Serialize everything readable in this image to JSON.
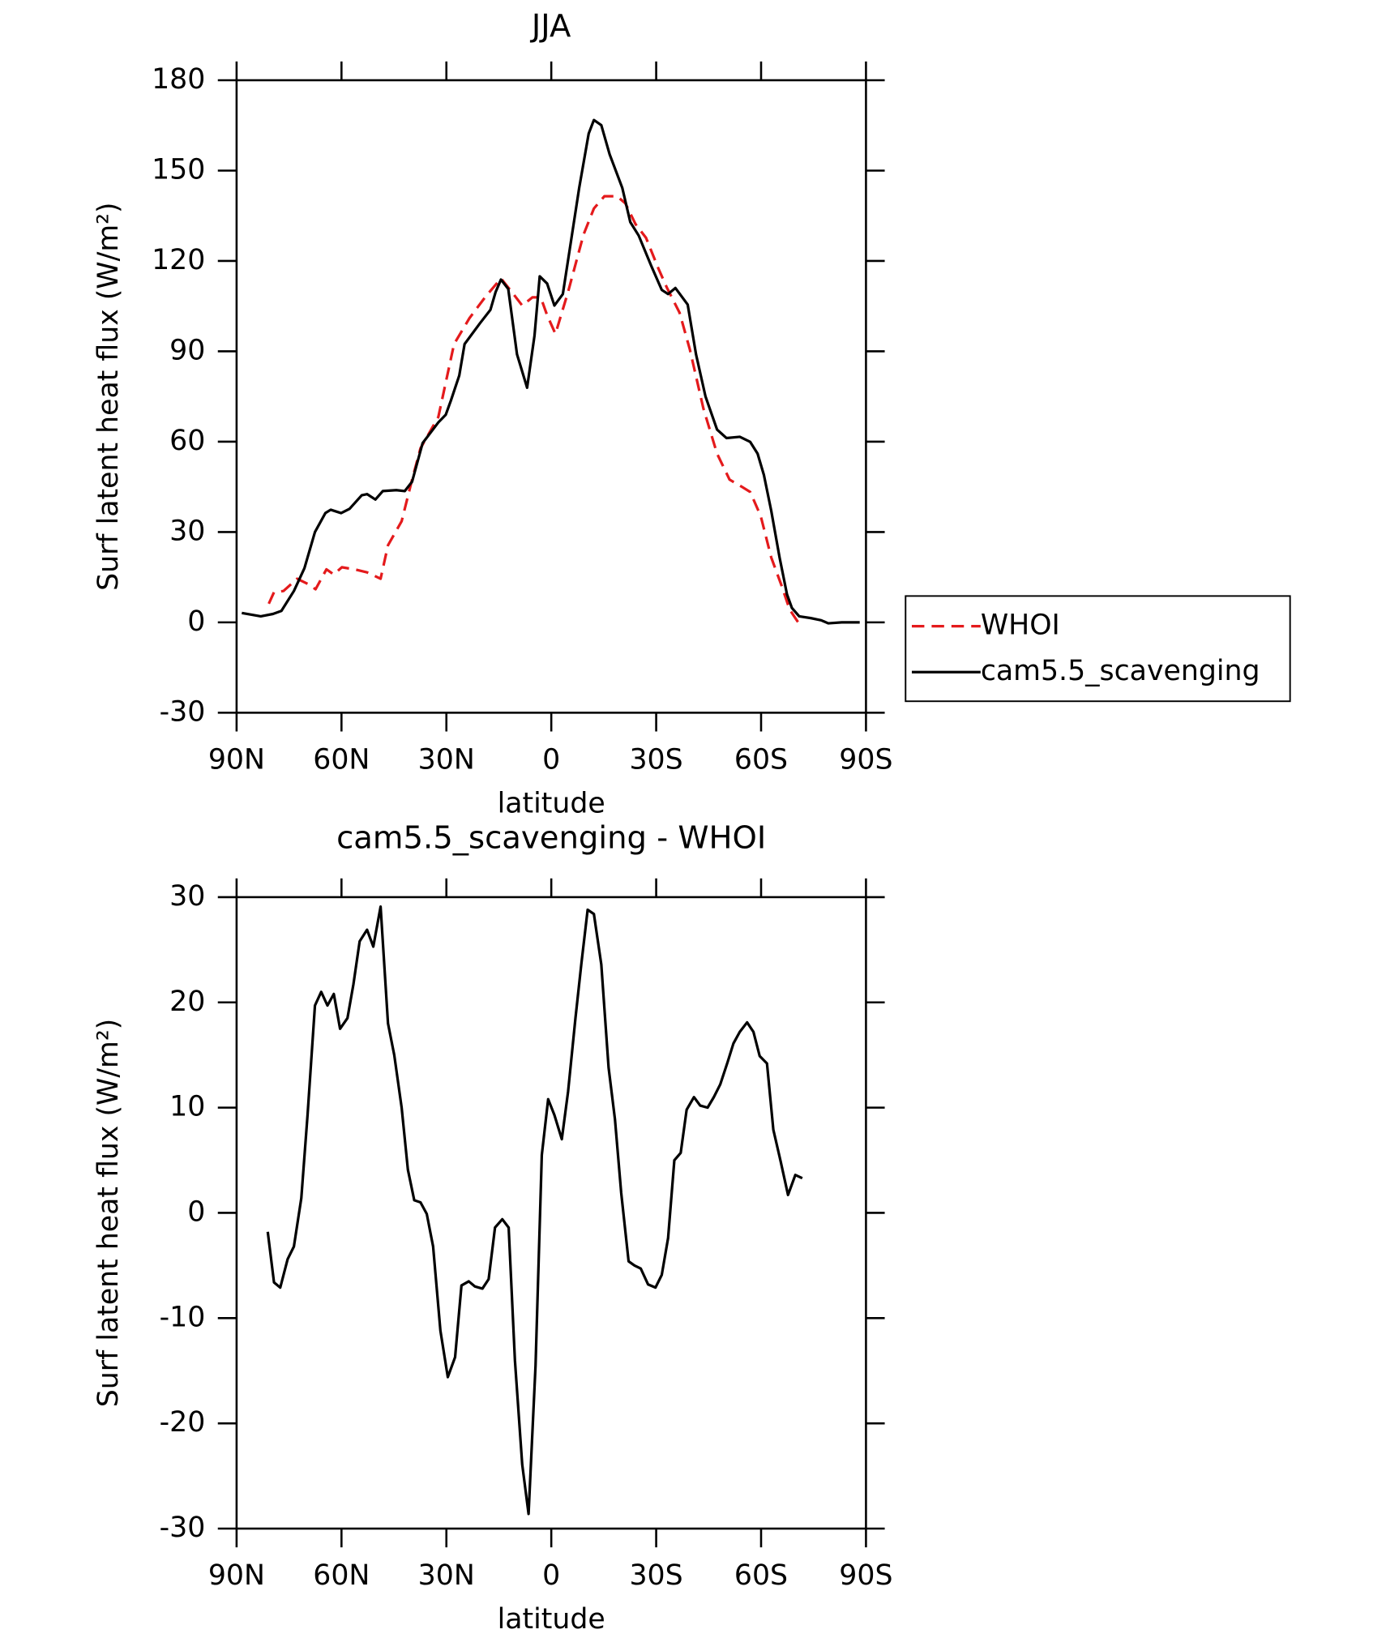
{
  "chart_data": [
    {
      "type": "line",
      "title": "JJA",
      "xlabel": "latitude",
      "ylabel": "Surf latent heat flux (W/m²)",
      "xlim": [
        90,
        -90
      ],
      "xticks": [
        {
          "value": 90,
          "label": "90N"
        },
        {
          "value": 60,
          "label": "60N"
        },
        {
          "value": 30,
          "label": "30N"
        },
        0,
        {
          "value": -30,
          "label": "30S"
        },
        {
          "value": -60,
          "label": "60S"
        },
        {
          "value": -90,
          "label": "90S"
        }
      ],
      "ylim": [
        -30,
        180
      ],
      "yticks": [
        -30,
        0,
        30,
        60,
        90,
        120,
        150,
        180
      ],
      "legend": "outside right",
      "series": [
        {
          "name": "WHOI",
          "color": "#e41a1c",
          "dash": true,
          "x": [
            80.8,
            79.3,
            76.6,
            72.7,
            69.7,
            67.4,
            64.3,
            62.2,
            59.9,
            56.3,
            52.7,
            48.8,
            46.7,
            42.8,
            39.8,
            37.4,
            32.3,
            27.8,
            23.4,
            18.9,
            14.4,
            11.3,
            8.3,
            5.4,
            3.0,
            1.2,
            -1.2,
            -4.8,
            -9.2,
            -12.2,
            -15.2,
            -18.8,
            -21.2,
            -24.1,
            -27.1,
            -30.7,
            -33.1,
            -36.7,
            -39.6,
            -43.5,
            -47.4,
            -51.0,
            -54.5,
            -56.9,
            -59.9,
            -62.9,
            -65.9,
            -68.2,
            -71.2
          ],
          "values": [
            6.2,
            10,
            10.4,
            14.5,
            12.8,
            11,
            17.6,
            15.9,
            18.3,
            17.6,
            16.6,
            14.5,
            25.6,
            33.6,
            47.4,
            57.8,
            68.2,
            92.4,
            101,
            108,
            114.2,
            109.7,
            105.2,
            107.9,
            107.9,
            102,
            95.8,
            109.7,
            128.7,
            137.4,
            141.5,
            141.5,
            139.1,
            132.2,
            127.7,
            117.3,
            111,
            102.8,
            90.7,
            71,
            56,
            47.4,
            45,
            43.3,
            35.3,
            21.5,
            12.1,
            4.2,
            -1
          ]
        },
        {
          "name": "cam5.5_scavenging",
          "color": "#000000",
          "dash": false,
          "x": [
            88.5,
            83.1,
            79.6,
            77.2,
            73.6,
            70.6,
            67.6,
            64.6,
            63.1,
            60.1,
            57.7,
            54.2,
            52.7,
            50.3,
            48.2,
            44.3,
            41.9,
            39.8,
            36.8,
            32.3,
            30.2,
            28.7,
            26.3,
            24.8,
            20.4,
            17.4,
            15.9,
            14.4,
            12.3,
            9.8,
            6.9,
            4.8,
            3.3,
            1.2,
            -0.9,
            -3.3,
            -5.7,
            -8.0,
            -10.7,
            -12.2,
            -14.3,
            -16.7,
            -20.3,
            -22.6,
            -25.0,
            -28.6,
            -31.6,
            -33.4,
            -35.5,
            -39.0,
            -41.4,
            -44.1,
            -47.4,
            -50.1,
            -53.9,
            -56.9,
            -59.0,
            -60.8,
            -62.9,
            -65.3,
            -67.4,
            -68.8,
            -70.9,
            -74.2,
            -77.2,
            -79.2,
            -83.1,
            -88.2
          ],
          "values": [
            3.1,
            2,
            2.8,
            3.8,
            10.4,
            18,
            30,
            36.3,
            37.4,
            36.3,
            37.7,
            42.2,
            42.6,
            40.8,
            43.6,
            43.9,
            43.6,
            46.7,
            59.5,
            66.4,
            68.9,
            73.7,
            82,
            92.4,
            99.3,
            103.8,
            109.7,
            113.8,
            110.7,
            89,
            77.9,
            95.2,
            114.9,
            112.5,
            105.2,
            109,
            127,
            144.3,
            162.3,
            166.8,
            165.1,
            155.4,
            144.3,
            132.9,
            128.4,
            118.3,
            110.4,
            109,
            111,
            105.5,
            89,
            75,
            64,
            61.2,
            61.6,
            59.9,
            56,
            49,
            37,
            21.5,
            9.3,
            4.8,
            2,
            1.4,
            0.7,
            -0.3,
            0,
            0
          ]
        }
      ]
    },
    {
      "type": "line",
      "title": "cam5.5_scavenging - WHOI",
      "xlabel": "latitude",
      "ylabel": "Surf latent heat flux (W/m²)",
      "xlim": [
        90,
        -90
      ],
      "xticks": [
        {
          "value": 90,
          "label": "90N"
        },
        {
          "value": 60,
          "label": "60N"
        },
        {
          "value": 30,
          "label": "30N"
        },
        0,
        {
          "value": -30,
          "label": "30S"
        },
        {
          "value": -60,
          "label": "60S"
        },
        {
          "value": -90,
          "label": "90S"
        }
      ],
      "ylim": [
        -30,
        30
      ],
      "yticks": [
        -30,
        -20,
        -10,
        0,
        10,
        20,
        30
      ],
      "series": [
        {
          "color": "#000000",
          "dash": false,
          "x": [
            81.1,
            79.3,
            77.5,
            75.4,
            73.6,
            71.5,
            69.7,
            67.6,
            65.8,
            64.0,
            62.2,
            60.4,
            58.3,
            56.6,
            54.8,
            52.7,
            50.9,
            48.8,
            46.7,
            44.9,
            42.8,
            41.0,
            39.2,
            37.4,
            35.6,
            33.8,
            31.7,
            29.6,
            27.5,
            25.7,
            23.6,
            21.8,
            19.7,
            17.9,
            16.1,
            14.0,
            12.2,
            10.4,
            8.3,
            6.5,
            4.5,
            2.7,
            0.9,
            -0.9,
            -3.0,
            -4.8,
            -6.9,
            -8.6,
            -10.4,
            -12.2,
            -14.3,
            -16.4,
            -18.2,
            -20.0,
            -22.1,
            -23.8,
            -25.6,
            -27.7,
            -29.8,
            -31.6,
            -33.4,
            -35.2,
            -37.0,
            -38.7,
            -40.8,
            -42.6,
            -44.7,
            -46.5,
            -48.3,
            -50.4,
            -52.1,
            -53.9,
            -56.0,
            -57.8,
            -59.6,
            -61.7,
            -63.5,
            -65.6,
            -67.7,
            -69.8,
            -71.8
          ],
          "values": [
            -1.8,
            -6.6,
            -7.1,
            -4.4,
            -3.2,
            1.4,
            9.3,
            19.7,
            21,
            19.7,
            20.8,
            17.5,
            18.5,
            21.7,
            25.8,
            26.9,
            25.3,
            29.1,
            18,
            15,
            10,
            4.1,
            1.2,
            1,
            -0.1,
            -3.2,
            -11.2,
            -15.6,
            -13.7,
            -6.9,
            -6.5,
            -7,
            -7.2,
            -6.3,
            -1.4,
            -0.6,
            -1.4,
            -14,
            -23.9,
            -28.6,
            -14.5,
            5.5,
            10.8,
            9.3,
            7,
            11.5,
            18.5,
            23.7,
            28.8,
            28.4,
            23.6,
            13.8,
            8.9,
            1.9,
            -4.6,
            -5,
            -5.3,
            -6.8,
            -7.1,
            -5.9,
            -2.4,
            5,
            5.7,
            9.8,
            11,
            10.2,
            10,
            11,
            12.2,
            14.3,
            16.1,
            17.2,
            18.1,
            17.2,
            14.9,
            14.2,
            7.9,
            4.9,
            1.7,
            3.6,
            3.3
          ]
        }
      ]
    }
  ]
}
